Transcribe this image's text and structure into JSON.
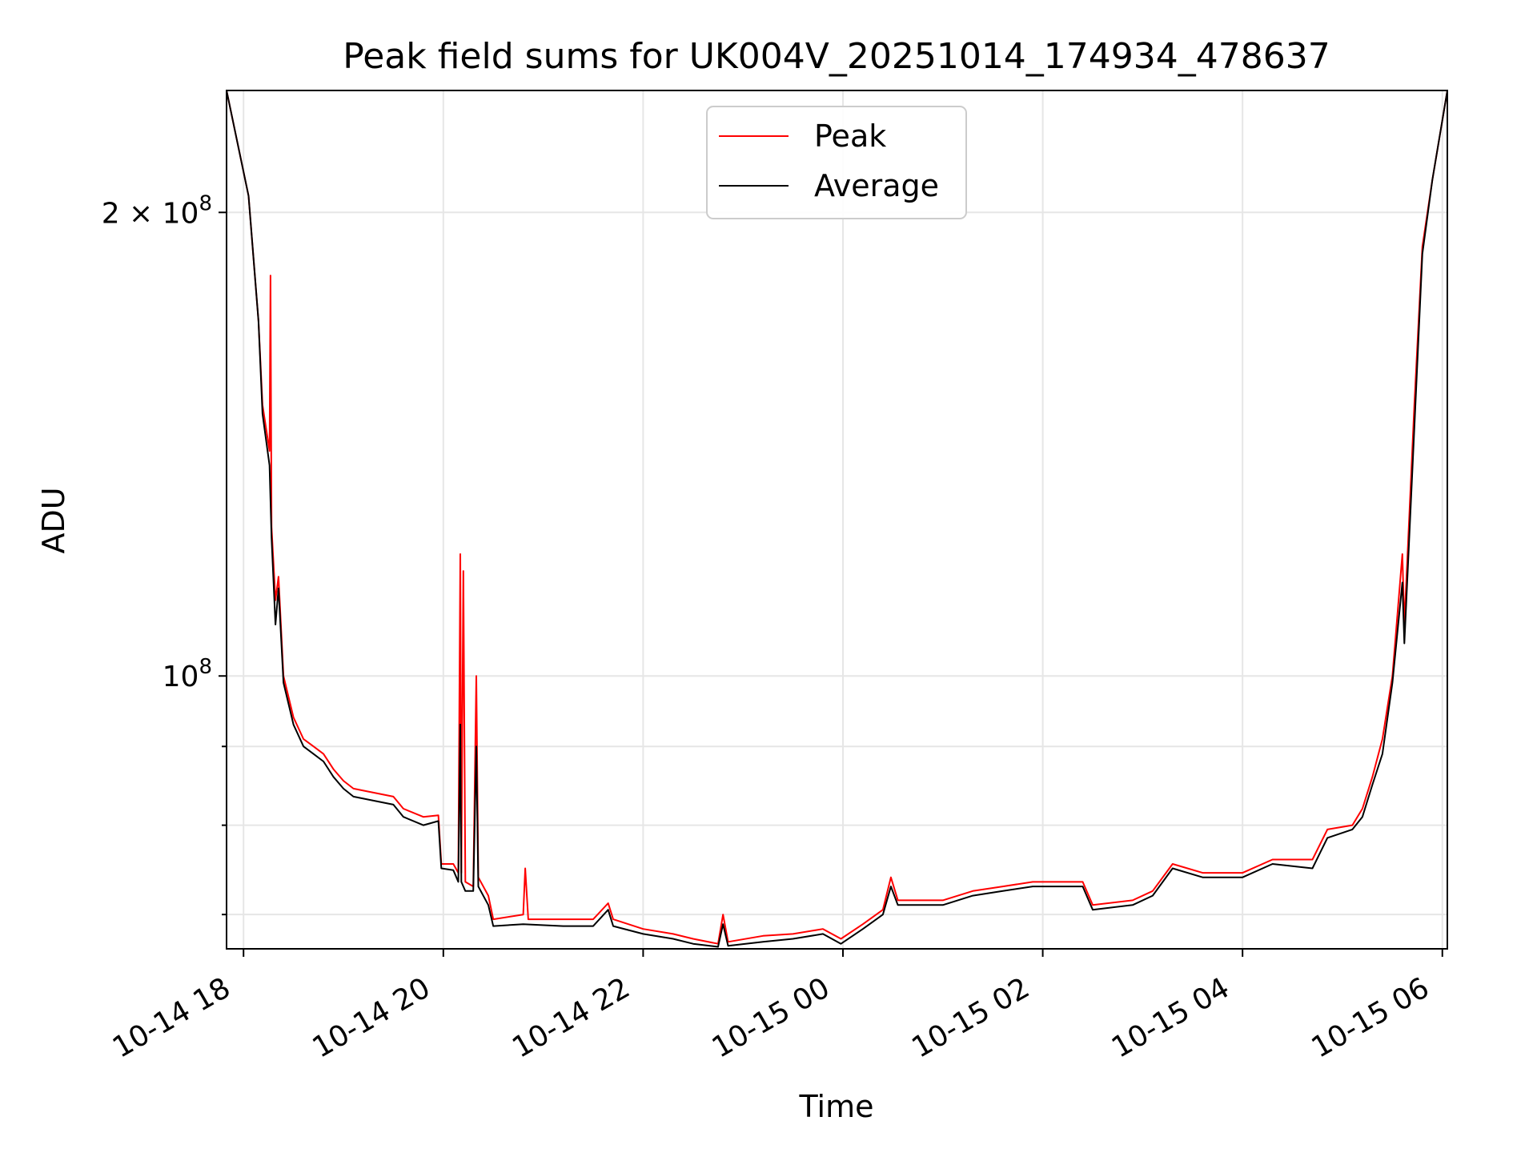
{
  "chart_data": {
    "type": "line",
    "title": "Peak field sums for UK004V_20251014_174934_478637",
    "xlabel": "Time",
    "ylabel": "ADU",
    "yscale": "log",
    "grid": true,
    "legend_position": "top-center",
    "x_unit": "hours since 10-14 18:00",
    "xlim": [
      -0.17,
      12.05
    ],
    "ylim": [
      66500000.0,
      240000000.0
    ],
    "x_ticks": [
      {
        "value": 0,
        "label": "10-14 18"
      },
      {
        "value": 2,
        "label": "10-14 20"
      },
      {
        "value": 4,
        "label": "10-14 22"
      },
      {
        "value": 6,
        "label": "10-15 00"
      },
      {
        "value": 8,
        "label": "10-15 02"
      },
      {
        "value": 10,
        "label": "10-15 04"
      },
      {
        "value": 12,
        "label": "10-15 06"
      }
    ],
    "y_major_ticks": [
      {
        "value": 100000000,
        "label_base": "10",
        "label_exp": "8"
      },
      {
        "value": 200000000,
        "label_base": "2 × 10",
        "label_exp": "8"
      }
    ],
    "y_minor_ticks": [
      70000000,
      80000000,
      90000000
    ],
    "series": [
      {
        "name": "Peak",
        "color": "#ff0000",
        "points": [
          [
            -0.17,
            240000000.0
          ],
          [
            0.05,
            205000000.0
          ],
          [
            0.15,
            170000000.0
          ],
          [
            0.19,
            150000000.0
          ],
          [
            0.26,
            140000000.0
          ],
          [
            0.27,
            182000000.0
          ],
          [
            0.28,
            125000000.0
          ],
          [
            0.32,
            112000000.0
          ],
          [
            0.35,
            116000000.0
          ],
          [
            0.4,
            100000000.0
          ],
          [
            0.5,
            94000000.0
          ],
          [
            0.6,
            91000000.0
          ],
          [
            0.7,
            90000000.0
          ],
          [
            0.8,
            89000000.0
          ],
          [
            0.9,
            87000000.0
          ],
          [
            1.0,
            85500000.0
          ],
          [
            1.1,
            84500000.0
          ],
          [
            1.3,
            84000000.0
          ],
          [
            1.5,
            83500000.0
          ],
          [
            1.6,
            82000000.0
          ],
          [
            1.8,
            81000000.0
          ],
          [
            1.95,
            81200000.0
          ],
          [
            1.98,
            75500000.0
          ],
          [
            2.1,
            75500000.0
          ],
          [
            2.15,
            74500000.0
          ],
          [
            2.17,
            120000000.0
          ],
          [
            2.18,
            74500000.0
          ],
          [
            2.2,
            117000000.0
          ],
          [
            2.22,
            73500000.0
          ],
          [
            2.3,
            73000000.0
          ],
          [
            2.33,
            100000000.0
          ],
          [
            2.35,
            74000000.0
          ],
          [
            2.45,
            72000000.0
          ],
          [
            2.5,
            69500000.0
          ],
          [
            2.8,
            70000000.0
          ],
          [
            2.82,
            75000000.0
          ],
          [
            2.85,
            69500000.0
          ],
          [
            3.2,
            69500000.0
          ],
          [
            3.5,
            69500000.0
          ],
          [
            3.65,
            71200000.0
          ],
          [
            3.7,
            69500000.0
          ],
          [
            4.0,
            68500000.0
          ],
          [
            4.3,
            68000000.0
          ],
          [
            4.5,
            67500000.0
          ],
          [
            4.75,
            67000000.0
          ],
          [
            4.8,
            70000000.0
          ],
          [
            4.85,
            67200000.0
          ],
          [
            5.2,
            67800000.0
          ],
          [
            5.5,
            68000000.0
          ],
          [
            5.8,
            68500000.0
          ],
          [
            5.98,
            67500000.0
          ],
          [
            6.2,
            69000000.0
          ],
          [
            6.4,
            70500000.0
          ],
          [
            6.48,
            74000000.0
          ],
          [
            6.55,
            71500000.0
          ],
          [
            7.0,
            71500000.0
          ],
          [
            7.3,
            72500000.0
          ],
          [
            7.6,
            73000000.0
          ],
          [
            7.9,
            73500000.0
          ],
          [
            8.2,
            73500000.0
          ],
          [
            8.4,
            73500000.0
          ],
          [
            8.5,
            71000000.0
          ],
          [
            8.9,
            71500000.0
          ],
          [
            9.1,
            72500000.0
          ],
          [
            9.3,
            75500000.0
          ],
          [
            9.6,
            74500000.0
          ],
          [
            10.0,
            74500000.0
          ],
          [
            10.3,
            76000000.0
          ],
          [
            10.7,
            76000000.0
          ],
          [
            10.85,
            79500000.0
          ],
          [
            11.1,
            80000000.0
          ],
          [
            11.2,
            82000000.0
          ],
          [
            11.3,
            86000000.0
          ],
          [
            11.4,
            91000000.0
          ],
          [
            11.5,
            100000000.0
          ],
          [
            11.6,
            120000000.0
          ],
          [
            11.62,
            108000000.0
          ],
          [
            11.72,
            150000000.0
          ],
          [
            11.8,
            190000000.0
          ],
          [
            11.9,
            210000000.0
          ],
          [
            12.05,
            240000000.0
          ]
        ]
      },
      {
        "name": "Average",
        "color": "#000000",
        "points": [
          [
            -0.17,
            240000000.0
          ],
          [
            0.05,
            205000000.0
          ],
          [
            0.15,
            170000000.0
          ],
          [
            0.19,
            148000000.0
          ],
          [
            0.26,
            137000000.0
          ],
          [
            0.28,
            123000000.0
          ],
          [
            0.32,
            108000000.0
          ],
          [
            0.35,
            114000000.0
          ],
          [
            0.4,
            99000000.0
          ],
          [
            0.5,
            93000000.0
          ],
          [
            0.6,
            90000000.0
          ],
          [
            0.7,
            89000000.0
          ],
          [
            0.8,
            88000000.0
          ],
          [
            0.9,
            86000000.0
          ],
          [
            1.0,
            84500000.0
          ],
          [
            1.1,
            83500000.0
          ],
          [
            1.3,
            83000000.0
          ],
          [
            1.5,
            82500000.0
          ],
          [
            1.6,
            81000000.0
          ],
          [
            1.8,
            80000000.0
          ],
          [
            1.95,
            80500000.0
          ],
          [
            1.98,
            75000000.0
          ],
          [
            2.1,
            74800000.0
          ],
          [
            2.15,
            73500000.0
          ],
          [
            2.17,
            93000000.0
          ],
          [
            2.18,
            73500000.0
          ],
          [
            2.22,
            72500000.0
          ],
          [
            2.3,
            72500000.0
          ],
          [
            2.33,
            90000000.0
          ],
          [
            2.35,
            73000000.0
          ],
          [
            2.45,
            71000000.0
          ],
          [
            2.5,
            68800000.0
          ],
          [
            2.8,
            69000000.0
          ],
          [
            3.2,
            68800000.0
          ],
          [
            3.5,
            68800000.0
          ],
          [
            3.65,
            70500000.0
          ],
          [
            3.7,
            68800000.0
          ],
          [
            4.0,
            68000000.0
          ],
          [
            4.3,
            67500000.0
          ],
          [
            4.5,
            67000000.0
          ],
          [
            4.75,
            66700000.0
          ],
          [
            4.8,
            69000000.0
          ],
          [
            4.85,
            66800000.0
          ],
          [
            5.2,
            67200000.0
          ],
          [
            5.5,
            67500000.0
          ],
          [
            5.8,
            68000000.0
          ],
          [
            5.98,
            67000000.0
          ],
          [
            6.2,
            68500000.0
          ],
          [
            6.4,
            70000000.0
          ],
          [
            6.48,
            73000000.0
          ],
          [
            6.55,
            71000000.0
          ],
          [
            7.0,
            71000000.0
          ],
          [
            7.3,
            72000000.0
          ],
          [
            7.6,
            72500000.0
          ],
          [
            7.9,
            73000000.0
          ],
          [
            8.2,
            73000000.0
          ],
          [
            8.4,
            73000000.0
          ],
          [
            8.5,
            70500000.0
          ],
          [
            8.9,
            71000000.0
          ],
          [
            9.1,
            72000000.0
          ],
          [
            9.3,
            75000000.0
          ],
          [
            9.6,
            74000000.0
          ],
          [
            10.0,
            74000000.0
          ],
          [
            10.3,
            75500000.0
          ],
          [
            10.7,
            75000000.0
          ],
          [
            10.85,
            78500000.0
          ],
          [
            11.1,
            79500000.0
          ],
          [
            11.2,
            81000000.0
          ],
          [
            11.3,
            85000000.0
          ],
          [
            11.4,
            89000000.0
          ],
          [
            11.5,
            99000000.0
          ],
          [
            11.6,
            115000000.0
          ],
          [
            11.62,
            105000000.0
          ],
          [
            11.72,
            145000000.0
          ],
          [
            11.8,
            188000000.0
          ],
          [
            11.9,
            210000000.0
          ],
          [
            12.05,
            240000000.0
          ]
        ]
      }
    ]
  }
}
